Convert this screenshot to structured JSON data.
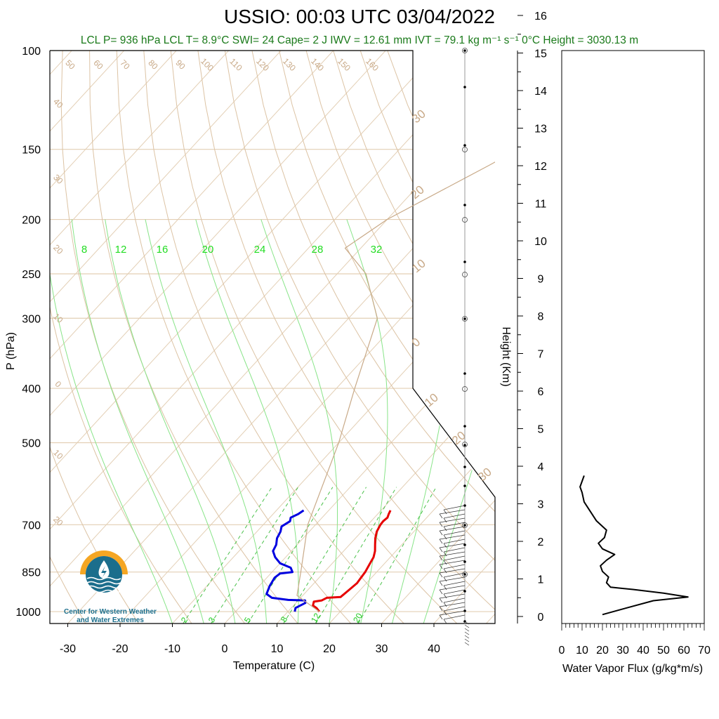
{
  "header": {
    "title": "USSIO: 00:03 UTC 03/04/2022",
    "stats": "LCL P= 936 hPa  LCL T= 8.9°C  SWI= 24  Cape= 2 J  IWV = 12.61 mm  IVT = 79.1 kg m⁻¹ s⁻¹  0°C Height = 3030.13 m"
  },
  "logo": {
    "line1": "Center for Western Weather",
    "line2": "and Water Extremes",
    "colors": {
      "orange": "#f5a623",
      "teal": "#1b6e8c"
    }
  },
  "chart_data": [
    {
      "type": "line",
      "name": "skew-T",
      "xlabel": "Temperature (C)",
      "ylabel": "P (hPa)",
      "y2label": "Height (Km)",
      "x_ticks": [
        -30,
        -20,
        -10,
        0,
        10,
        20,
        30,
        40
      ],
      "x_tick_labels": [
        "-30",
        "-20",
        "-10",
        "0",
        "10",
        "20",
        "30",
        "40"
      ],
      "p_ticks": [
        100,
        150,
        200,
        250,
        300,
        400,
        500,
        700,
        850,
        1000
      ],
      "p_tick_labels": [
        "100",
        "150",
        "200",
        "250",
        "300",
        "400",
        "500",
        "700",
        "850",
        "1000"
      ],
      "h_ticks": [
        0,
        1,
        2,
        3,
        4,
        5,
        6,
        7,
        8,
        9,
        10,
        11,
        12,
        13,
        14,
        15,
        16
      ],
      "h_tick_labels": [
        "0",
        "1",
        "2",
        "3",
        "4",
        "5",
        "6",
        "7",
        "8",
        "9",
        "10",
        "11",
        "12",
        "13",
        "14",
        "15",
        "16"
      ],
      "mixing_ratio_labels": [
        "8",
        "12",
        "16",
        "20",
        "24",
        "28",
        "32"
      ],
      "theta_labels_top": [
        "50",
        "60",
        "70",
        "80",
        "90",
        "100",
        "110",
        "120",
        "130",
        "140",
        "150",
        "160"
      ],
      "theta_labels_left": [
        "40",
        "30",
        "20",
        "10",
        "0",
        "10",
        "20"
      ],
      "skewed_temp_labels_right": [
        "30",
        "20",
        "10",
        "0",
        "10",
        "20",
        "30"
      ],
      "lower_mixing_labels": [
        "2",
        "3",
        "5",
        "8",
        "12",
        "20"
      ],
      "series": [
        {
          "name": "temperature",
          "color": "#e60000",
          "points": [
            [
              16.0,
              1000
            ],
            [
              14.8,
              985
            ],
            [
              13.7,
              975
            ],
            [
              13.2,
              960
            ],
            [
              14.5,
              955
            ],
            [
              15.0,
              945
            ],
            [
              17.5,
              942
            ],
            [
              17.8,
              920
            ],
            [
              18.2,
              890
            ],
            [
              18.0,
              870
            ],
            [
              17.8,
              850
            ],
            [
              17.2,
              820
            ],
            [
              16.8,
              800
            ],
            [
              16.0,
              780
            ],
            [
              14.9,
              760
            ],
            [
              13.8,
              740
            ],
            [
              12.9,
              720
            ],
            [
              12.4,
              700
            ],
            [
              12.3,
              690
            ],
            [
              12.5,
              680
            ],
            [
              12.1,
              670
            ],
            [
              11.8,
              660
            ]
          ]
        },
        {
          "name": "dewpoint",
          "color": "#0000e0",
          "points": [
            [
              11.3,
              1000
            ],
            [
              10.8,
              985
            ],
            [
              11.8,
              965
            ],
            [
              11.3,
              955
            ],
            [
              8.0,
              953
            ],
            [
              4.5,
              945
            ],
            [
              2.8,
              930
            ],
            [
              2.0,
              900
            ],
            [
              1.5,
              870
            ],
            [
              1.8,
              855
            ],
            [
              3.9,
              850
            ],
            [
              2.8,
              835
            ],
            [
              0.0,
              820
            ],
            [
              -2.0,
              800
            ],
            [
              -3.5,
              780
            ],
            [
              -4.0,
              760
            ],
            [
              -5.0,
              740
            ],
            [
              -5.5,
              720
            ],
            [
              -6.2,
              705
            ],
            [
              -5.5,
              690
            ],
            [
              -6.0,
              680
            ],
            [
              -5.2,
              670
            ],
            [
              -4.8,
              660
            ]
          ]
        },
        {
          "name": "parcel",
          "color": "#c8a987",
          "points": [
            [
              16.0,
              1000
            ],
            [
              8.9,
              936
            ],
            [
              5.5,
              850
            ],
            [
              -1.5,
              700
            ],
            [
              -10.0,
              500
            ],
            [
              -16.5,
              400
            ],
            [
              -24.5,
              300
            ],
            [
              -34.5,
              250
            ],
            [
              -43.0,
              225
            ],
            [
              -40.0,
              200
            ],
            [
              -30.0,
              160
            ],
            [
              -18.0,
              120
            ],
            [
              -11.0,
              100
            ]
          ]
        }
      ]
    },
    {
      "type": "line",
      "name": "water-vapor-flux",
      "xlabel": "Water Vapor Flux (g/kg*m/s)",
      "x_ticks": [
        0,
        10,
        20,
        30,
        40,
        50,
        60,
        70
      ],
      "x_tick_labels": [
        "0",
        "10",
        "20",
        "30",
        "40",
        "50",
        "60",
        "70"
      ],
      "xlim": [
        0,
        70
      ],
      "series": [
        {
          "name": "flux",
          "color": "#000000",
          "points": [
            [
              20,
              0.05
            ],
            [
              30,
              0.2
            ],
            [
              45,
              0.42
            ],
            [
              62,
              0.52
            ],
            [
              50,
              0.62
            ],
            [
              35,
              0.72
            ],
            [
              24,
              0.78
            ],
            [
              22,
              0.9
            ],
            [
              23,
              1.05
            ],
            [
              20,
              1.2
            ],
            [
              19,
              1.35
            ],
            [
              22,
              1.5
            ],
            [
              26,
              1.65
            ],
            [
              20,
              1.8
            ],
            [
              18,
              1.95
            ],
            [
              21,
              2.1
            ],
            [
              22,
              2.3
            ],
            [
              17,
              2.55
            ],
            [
              14,
              2.8
            ],
            [
              11,
              3.05
            ],
            [
              10,
              3.3
            ],
            [
              9,
              3.45
            ],
            [
              10,
              3.6
            ],
            [
              11,
              3.75
            ]
          ]
        }
      ]
    }
  ]
}
